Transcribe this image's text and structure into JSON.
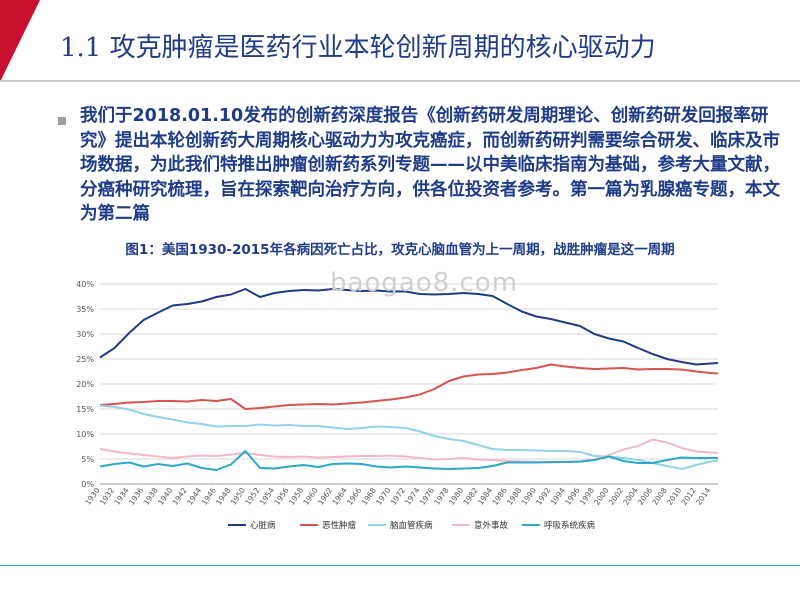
{
  "slide": {
    "title": "1.1 攻克肿瘤是医药行业本轮创新周期的核心驱动力",
    "paragraph": "我们于2018.01.10发布的创新药深度报告《创新药研发周期理论、创新药研发回报率研究》提出本轮创新药大周期核心驱动力为攻克癌症，而创新药研判需要综合研发、临床及市场数据，为此我们特推出肿瘤创新药系列专题——以中美临床指南为基础，参考大量文献，分癌种研究梳理，旨在探索靶向治疗方向，供各位投资者参考。第一篇为乳腺癌专题，本文为第二篇",
    "figure_title": "图1：美国1930-2015年各病因死亡占比，攻克心脑血管为上一周期，战胜肿瘤是这一周期",
    "watermark": "baogao8.com",
    "accent_color": "#c8102e",
    "title_color": "#1f3c88"
  },
  "chart_data": {
    "type": "line",
    "x": [
      1930,
      1932,
      1934,
      1936,
      1938,
      1940,
      1942,
      1944,
      1946,
      1948,
      1950,
      1952,
      1954,
      1956,
      1958,
      1960,
      1962,
      1964,
      1966,
      1968,
      1970,
      1972,
      1974,
      1976,
      1978,
      1980,
      1982,
      1984,
      1986,
      1988,
      1990,
      1992,
      1994,
      1996,
      1998,
      2000,
      2002,
      2004,
      2006,
      2008,
      2010,
      2012,
      2014,
      2015
    ],
    "xticks": [
      "1930",
      "1932",
      "1934",
      "1936",
      "1938",
      "1940",
      "1942",
      "1944",
      "1946",
      "1948",
      "1950",
      "1952",
      "1954",
      "1956",
      "1958",
      "1960",
      "1962",
      "1964",
      "1966",
      "1968",
      "1970",
      "1972",
      "1974",
      "1976",
      "1978",
      "1980",
      "1982",
      "1984",
      "1986",
      "1988",
      "1990",
      "1992",
      "1994",
      "1996",
      "1998",
      "2000",
      "2002",
      "2004",
      "2006",
      "2008",
      "2010",
      "2012",
      "2014"
    ],
    "ylim": [
      0,
      40
    ],
    "yticks": [
      "0%",
      "5%",
      "10%",
      "15%",
      "20%",
      "25%",
      "30%",
      "35%",
      "40%"
    ],
    "grid": true,
    "legend": "bottom",
    "series": [
      {
        "name": "心脏病",
        "color": "#1f3c88",
        "values": [
          25.3,
          27.2,
          30.2,
          32.8,
          34.3,
          35.7,
          36.0,
          36.5,
          37.4,
          37.9,
          39.0,
          37.4,
          38.2,
          38.6,
          38.8,
          38.7,
          39.0,
          38.8,
          38.6,
          38.7,
          38.5,
          38.5,
          38.0,
          37.9,
          38.0,
          38.2,
          38.0,
          37.6,
          36.0,
          34.5,
          33.5,
          33.0,
          32.3,
          31.6,
          30.0,
          29.1,
          28.5,
          27.2,
          26.0,
          25.0,
          24.4,
          23.9,
          24.1,
          24.2
        ]
      },
      {
        "name": "恶性肿瘤",
        "color": "#d9534f",
        "values": [
          15.8,
          16.0,
          16.3,
          16.4,
          16.6,
          16.6,
          16.5,
          16.8,
          16.6,
          17.0,
          15.0,
          15.2,
          15.5,
          15.8,
          15.9,
          16.0,
          15.9,
          16.1,
          16.3,
          16.6,
          16.9,
          17.3,
          17.9,
          19.0,
          20.6,
          21.5,
          21.9,
          22.0,
          22.3,
          22.8,
          23.2,
          23.9,
          23.5,
          23.2,
          23.0,
          23.1,
          23.2,
          22.9,
          23.0,
          23.0,
          22.9,
          22.5,
          22.2,
          22.1
        ]
      },
      {
        "name": "脑血管疾病",
        "color": "#8fd3ec",
        "values": [
          15.7,
          15.4,
          14.9,
          14.0,
          13.4,
          12.9,
          12.3,
          12.0,
          11.5,
          11.6,
          11.6,
          11.9,
          11.7,
          11.8,
          11.6,
          11.6,
          11.3,
          11.0,
          11.2,
          11.5,
          11.4,
          11.2,
          10.5,
          9.6,
          9.0,
          8.6,
          7.8,
          7.0,
          6.8,
          6.8,
          6.7,
          6.6,
          6.6,
          6.4,
          5.6,
          5.5,
          5.2,
          4.8,
          4.2,
          3.6,
          3.0,
          3.8,
          4.5,
          4.7
        ]
      },
      {
        "name": "意外事故",
        "color": "#f2b8c6",
        "values": [
          7.0,
          6.5,
          6.1,
          5.8,
          5.5,
          5.2,
          5.5,
          5.7,
          5.6,
          5.9,
          6.2,
          5.8,
          5.5,
          5.4,
          5.5,
          5.3,
          5.4,
          5.5,
          5.6,
          5.6,
          5.7,
          5.5,
          5.2,
          4.9,
          5.0,
          5.2,
          4.9,
          4.8,
          4.6,
          4.5,
          4.4,
          4.3,
          4.4,
          4.4,
          4.9,
          5.8,
          6.9,
          7.6,
          8.9,
          8.3,
          7.2,
          6.5,
          6.3,
          6.2
        ]
      },
      {
        "name": "呼吸系统疾病",
        "color": "#2ca9c9",
        "values": [
          3.5,
          4.0,
          4.3,
          3.5,
          4.0,
          3.6,
          4.1,
          3.2,
          2.8,
          3.9,
          6.6,
          3.2,
          3.1,
          3.5,
          3.8,
          3.4,
          4.0,
          4.1,
          4.0,
          3.5,
          3.3,
          3.5,
          3.3,
          3.1,
          3.0,
          3.1,
          3.2,
          3.6,
          4.3,
          4.3,
          4.3,
          4.4,
          4.4,
          4.5,
          4.8,
          5.5,
          4.6,
          4.2,
          4.2,
          4.8,
          5.3,
          5.2,
          5.2,
          5.2
        ]
      }
    ]
  }
}
